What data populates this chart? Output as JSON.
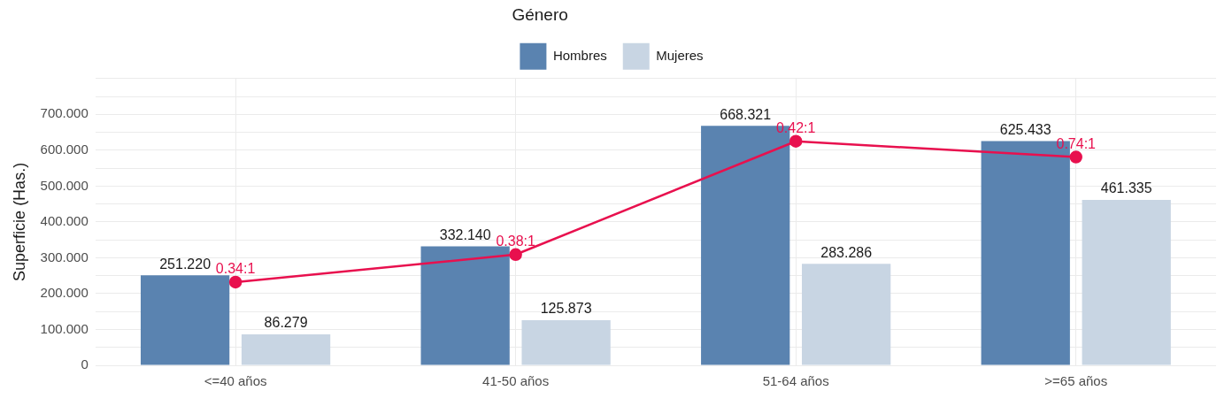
{
  "chart_data": {
    "type": "bar",
    "ylabel": "Superficie (Has.)",
    "legend_title": "Género",
    "legend": "top",
    "grid": true,
    "categories": [
      "<=40 años",
      "41-50 años",
      "51-64 años",
      ">=65 años"
    ],
    "ylim": [
      0,
      800
    ],
    "yticks": [
      {
        "value": 0,
        "label": "0"
      },
      {
        "value": 50,
        "label": null
      },
      {
        "value": 100,
        "label": "100.000"
      },
      {
        "value": 150,
        "label": null
      },
      {
        "value": 200,
        "label": "200.000"
      },
      {
        "value": 250,
        "label": null
      },
      {
        "value": 300,
        "label": "300.000"
      },
      {
        "value": 350,
        "label": null
      },
      {
        "value": 400,
        "label": "400.000"
      },
      {
        "value": 450,
        "label": null
      },
      {
        "value": 500,
        "label": "500.000"
      },
      {
        "value": 550,
        "label": null
      },
      {
        "value": 600,
        "label": "600.000"
      },
      {
        "value": 650,
        "label": null
      },
      {
        "value": 700,
        "label": "700.000"
      },
      {
        "value": 750,
        "label": null
      },
      {
        "value": 800,
        "label": null
      }
    ],
    "series": [
      {
        "name": "Hombres",
        "color": "#5a83b0",
        "values": [
          251.22,
          332.14,
          668.321,
          625.433
        ],
        "value_labels": [
          "251.220",
          "332.140",
          "668.321",
          "625.433"
        ]
      },
      {
        "name": "Mujeres",
        "color": "#c8d5e3",
        "values": [
          86.279,
          125.873,
          283.286,
          461.335
        ],
        "value_labels": [
          "86.279",
          "125.873",
          "283.286",
          "461.335"
        ]
      },
      {
        "type": "line",
        "color": "#e8104e",
        "marker": "circle",
        "values": [
          232,
          309,
          625,
          581
        ],
        "value_labels": [
          "0.34:1",
          "0.38:1",
          "0.42:1",
          "0.74:1"
        ]
      }
    ]
  }
}
